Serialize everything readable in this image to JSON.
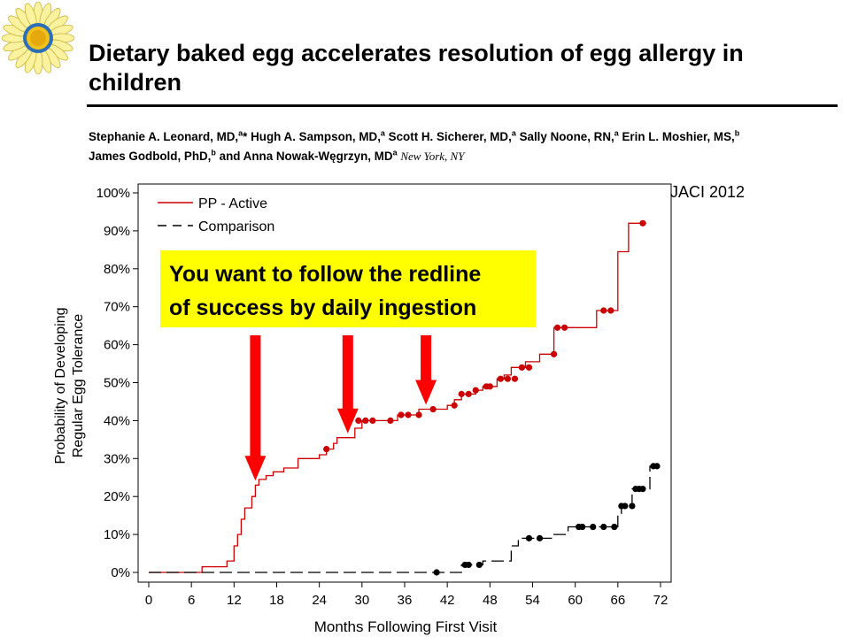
{
  "title": "Dietary baked egg accelerates resolution of egg allergy in children",
  "authors": [
    {
      "name": "Stephanie A. Leonard, MD,",
      "sup": "a",
      "extra": "*"
    },
    {
      "name": "Hugh A. Sampson, MD,",
      "sup": "a"
    },
    {
      "name": "Scott H. Sicherer, MD,",
      "sup": "a"
    },
    {
      "name": "Sally Noone, RN,",
      "sup": "a"
    },
    {
      "name": "Erin L. Moshier, MS,",
      "sup": "b"
    },
    {
      "name": "James Godbold, PhD,",
      "sup": "b"
    },
    {
      "name": "and Anna Nowak-Węgrzyn, MD",
      "sup": "a"
    }
  ],
  "location": "New York, NY",
  "journal": "JACI 2012",
  "callout": {
    "line1": "You want to follow the redline",
    "line2": "of success by daily ingestion",
    "bg_color": "#ffff00",
    "arrow_color": "#ff0000",
    "arrows_point_to_months": [
      15,
      28,
      39
    ]
  },
  "chart_data": {
    "type": "line",
    "step": true,
    "xlabel": "Months Following First Visit",
    "ylabel_lines": [
      "Probability of Developing",
      "Regular Egg Tolerance"
    ],
    "xlim": [
      0,
      72
    ],
    "ylim": [
      0,
      100
    ],
    "xticks": [
      0,
      6,
      12,
      18,
      24,
      30,
      36,
      42,
      48,
      54,
      60,
      66,
      72
    ],
    "yticks": [
      "0%",
      "10%",
      "20%",
      "30%",
      "40%",
      "50%",
      "60%",
      "70%",
      "80%",
      "90%",
      "100%"
    ],
    "legend_position": "top-left",
    "series": [
      {
        "name": "PP - Active",
        "color": "#cc0000",
        "style": "solid",
        "points": [
          [
            0,
            0
          ],
          [
            7.5,
            0
          ],
          [
            7.5,
            1.5
          ],
          [
            11,
            1.5
          ],
          [
            11,
            3
          ],
          [
            12,
            3
          ],
          [
            12,
            7
          ],
          [
            12.5,
            7
          ],
          [
            12.5,
            10
          ],
          [
            13,
            10
          ],
          [
            13,
            14
          ],
          [
            13.5,
            14
          ],
          [
            13.5,
            17
          ],
          [
            14.5,
            17
          ],
          [
            14.5,
            20
          ],
          [
            15,
            20
          ],
          [
            15,
            23
          ],
          [
            15.5,
            23
          ],
          [
            15.5,
            24.5
          ],
          [
            16.5,
            24.5
          ],
          [
            16.5,
            25.5
          ],
          [
            17.5,
            25.5
          ],
          [
            17.5,
            26.5
          ],
          [
            19,
            26.5
          ],
          [
            19,
            27.5
          ],
          [
            21,
            27.5
          ],
          [
            21,
            30
          ],
          [
            24,
            30
          ],
          [
            24,
            31
          ],
          [
            25,
            31
          ],
          [
            25,
            32.5
          ],
          [
            26,
            32.5
          ],
          [
            26,
            34
          ],
          [
            26.5,
            34
          ],
          [
            26.5,
            35.5
          ],
          [
            29,
            35.5
          ],
          [
            29,
            38
          ],
          [
            30,
            38
          ],
          [
            30,
            40
          ],
          [
            35,
            40
          ],
          [
            35,
            41.5
          ],
          [
            38,
            41.5
          ],
          [
            38,
            43
          ],
          [
            42,
            43
          ],
          [
            42,
            44
          ],
          [
            43,
            44
          ],
          [
            43,
            45.5
          ],
          [
            44,
            45.5
          ],
          [
            44,
            47
          ],
          [
            46,
            47
          ],
          [
            46,
            48
          ],
          [
            47,
            48
          ],
          [
            47,
            49
          ],
          [
            49,
            49
          ],
          [
            49,
            51
          ],
          [
            50,
            51
          ],
          [
            50,
            52
          ],
          [
            51,
            52
          ],
          [
            51,
            54
          ],
          [
            53,
            54
          ],
          [
            53,
            55.5
          ],
          [
            55,
            55.5
          ],
          [
            55,
            57.5
          ],
          [
            57,
            57.5
          ],
          [
            57,
            64.5
          ],
          [
            63,
            64.5
          ],
          [
            63,
            69
          ],
          [
            66,
            69
          ],
          [
            66,
            84.5
          ],
          [
            67.5,
            84.5
          ],
          [
            67.5,
            92
          ],
          [
            70,
            92
          ]
        ],
        "markers": [
          [
            25,
            32.5
          ],
          [
            29.5,
            40
          ],
          [
            30.5,
            40
          ],
          [
            31.5,
            40
          ],
          [
            34,
            40
          ],
          [
            35.5,
            41.5
          ],
          [
            36.5,
            41.5
          ],
          [
            38,
            41.5
          ],
          [
            40,
            43
          ],
          [
            43,
            44
          ],
          [
            44,
            47
          ],
          [
            45,
            47
          ],
          [
            46,
            48
          ],
          [
            47.5,
            49
          ],
          [
            48,
            49
          ],
          [
            49.5,
            51
          ],
          [
            50.5,
            51
          ],
          [
            51.5,
            51
          ],
          [
            52.5,
            54
          ],
          [
            53.5,
            54
          ],
          [
            57,
            57.5
          ],
          [
            57.5,
            64.5
          ],
          [
            58.5,
            64.5
          ],
          [
            64,
            69
          ],
          [
            65,
            69
          ],
          [
            69.5,
            92
          ]
        ]
      },
      {
        "name": "Comparison",
        "color": "#000000",
        "style": "dashed",
        "points": [
          [
            0,
            0
          ],
          [
            44,
            0
          ],
          [
            44,
            2
          ],
          [
            47,
            2
          ],
          [
            47,
            3
          ],
          [
            51,
            3
          ],
          [
            51,
            7
          ],
          [
            52,
            7
          ],
          [
            52,
            9
          ],
          [
            57,
            9
          ],
          [
            57,
            10
          ],
          [
            59,
            10
          ],
          [
            59,
            12
          ],
          [
            66,
            12
          ],
          [
            66,
            15.5
          ],
          [
            66.5,
            15.5
          ],
          [
            66.5,
            17.5
          ],
          [
            68,
            17.5
          ],
          [
            68,
            22
          ],
          [
            70.5,
            22
          ],
          [
            70.5,
            28
          ],
          [
            72,
            28
          ]
        ],
        "markers": [
          [
            40.5,
            0
          ],
          [
            44.5,
            2
          ],
          [
            45,
            2
          ],
          [
            46.5,
            2
          ],
          [
            53.5,
            9
          ],
          [
            55,
            9
          ],
          [
            60.5,
            12
          ],
          [
            61,
            12
          ],
          [
            62.5,
            12
          ],
          [
            64,
            12
          ],
          [
            65.5,
            12
          ],
          [
            66.5,
            17.5
          ],
          [
            67,
            17.5
          ],
          [
            68,
            17.5
          ],
          [
            68.5,
            22
          ],
          [
            69,
            22
          ],
          [
            69.5,
            22
          ],
          [
            71,
            28
          ],
          [
            71.5,
            28
          ]
        ]
      }
    ]
  }
}
